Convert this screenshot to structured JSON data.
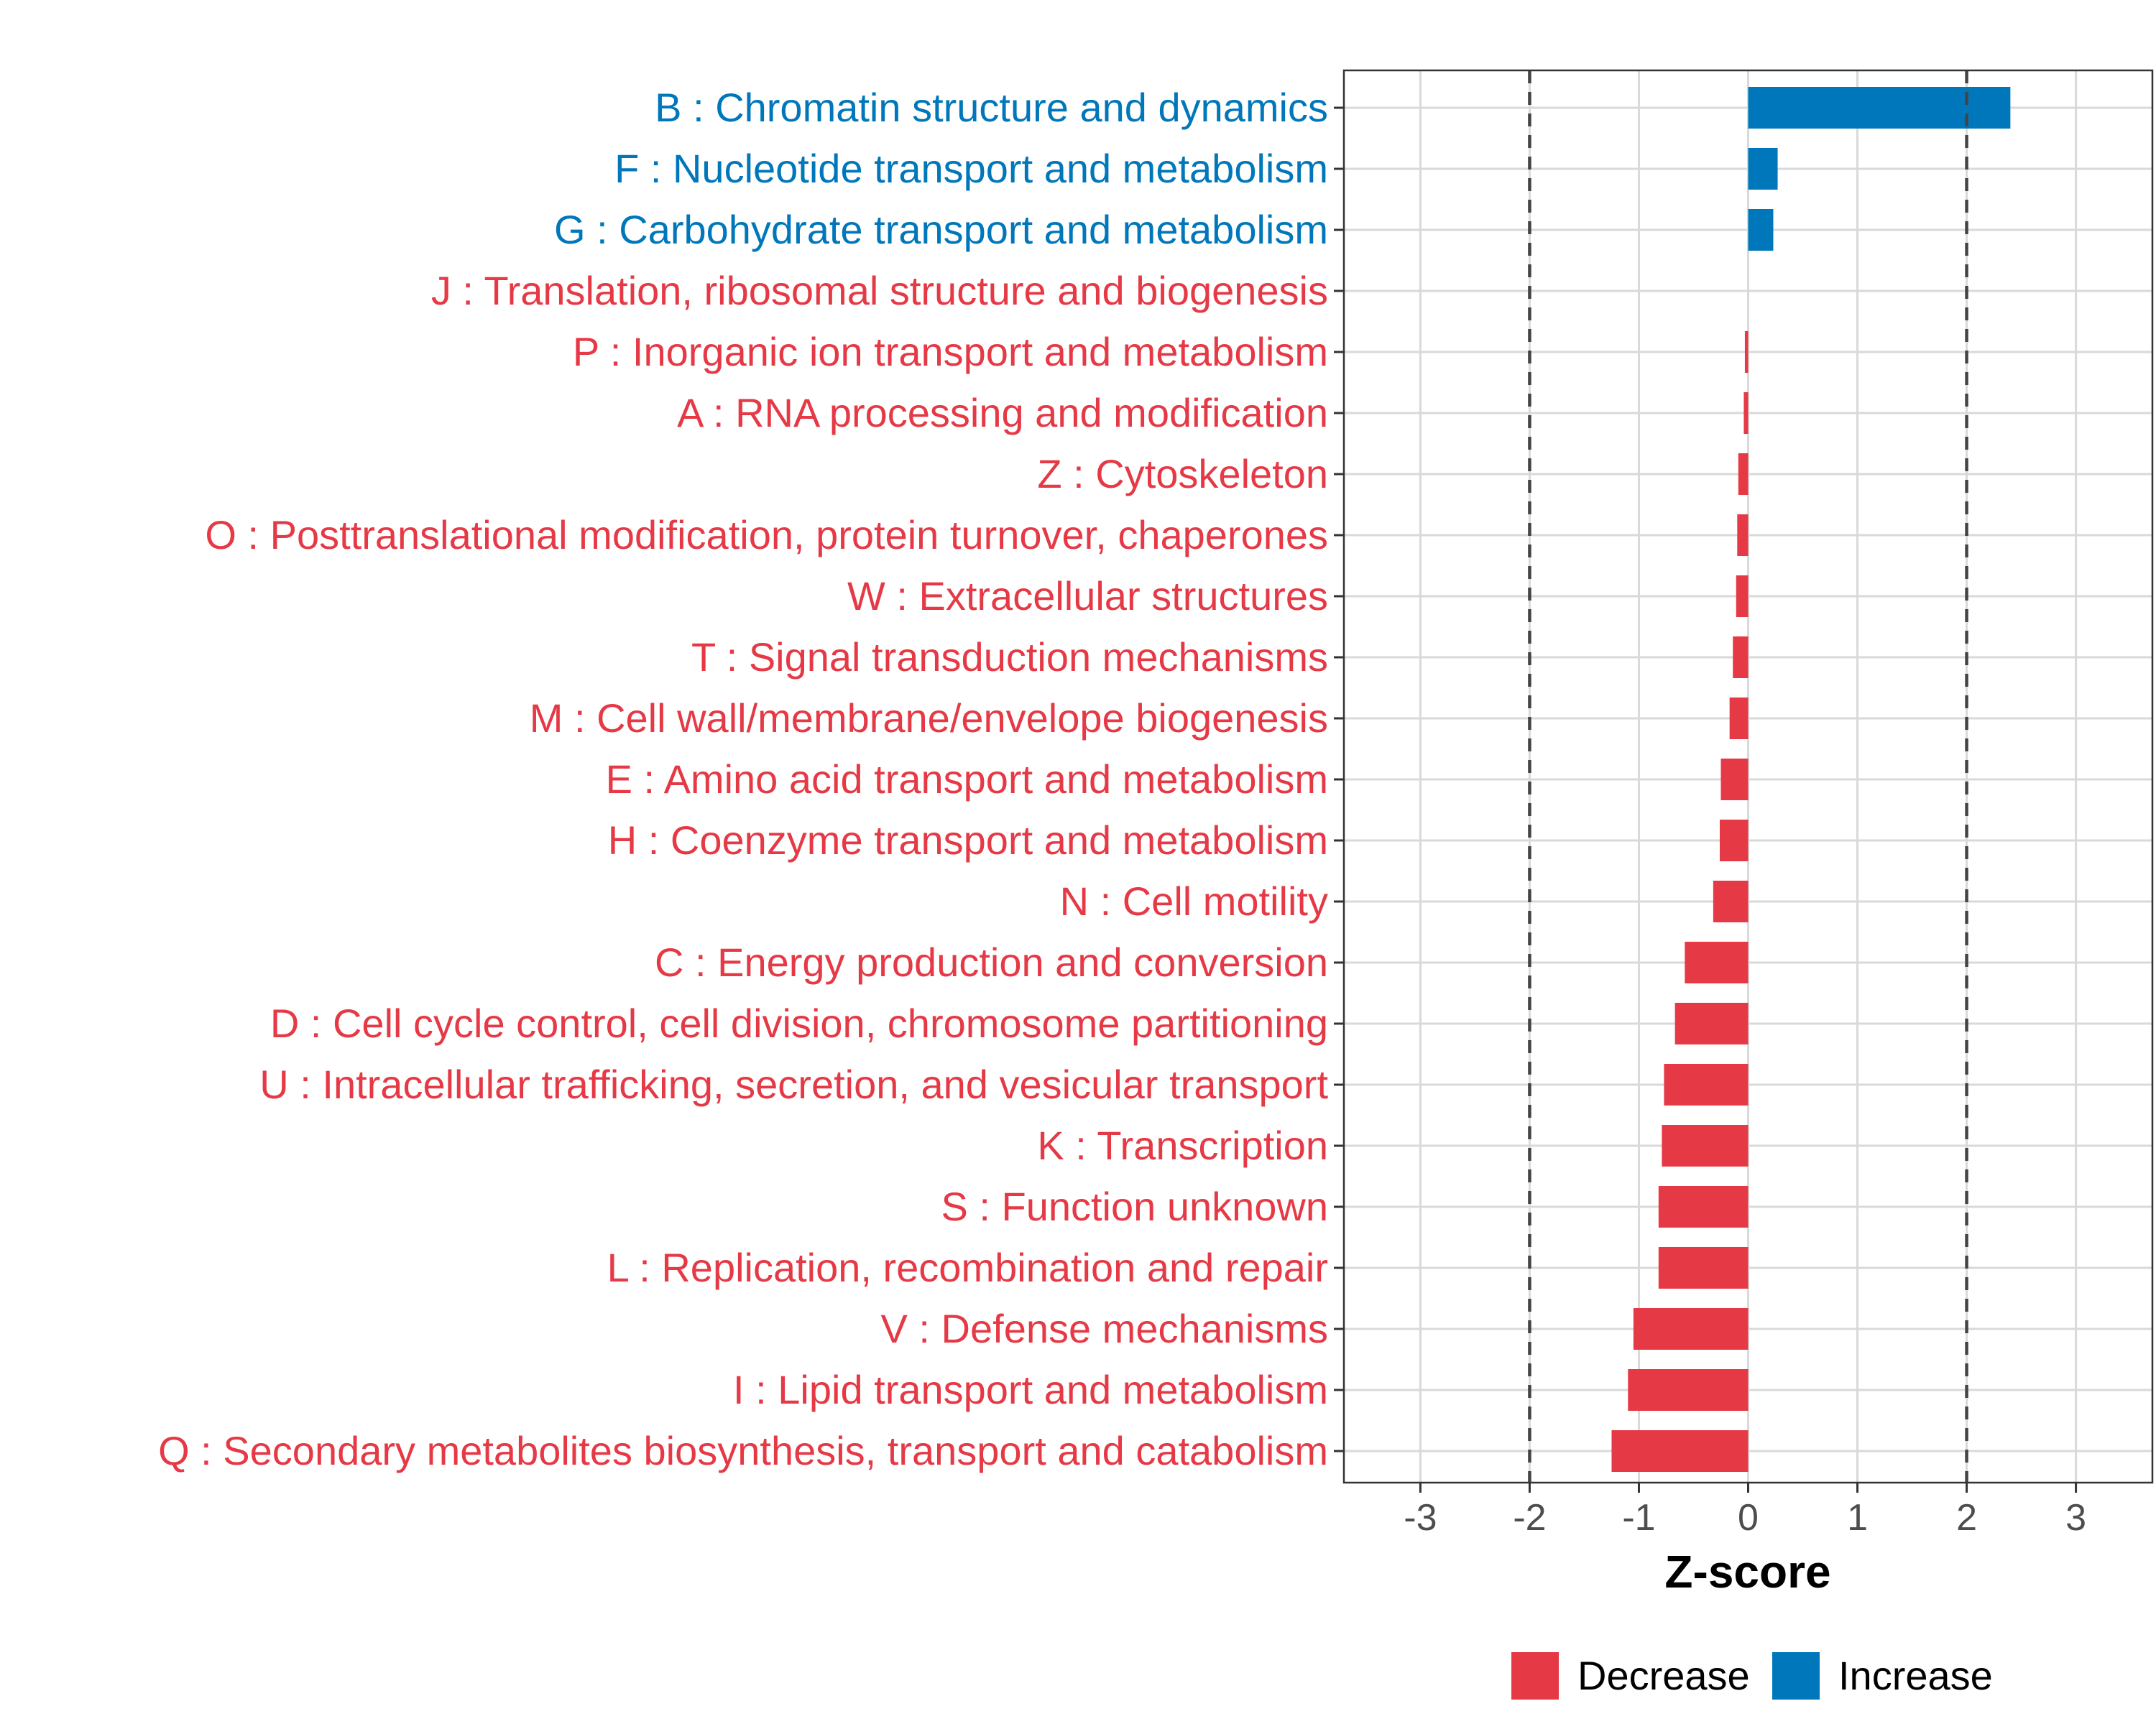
{
  "chart_data": {
    "type": "bar",
    "orientation": "horizontal",
    "xlabel": "Z-score",
    "ylabel": "",
    "xlim": [
      -3.7,
      3.7
    ],
    "xticks": [
      -3,
      -2,
      -1,
      0,
      1,
      2,
      3
    ],
    "tick_labels": [
      "-3",
      "-2",
      "-1",
      "0",
      "1",
      "2",
      "3"
    ],
    "reference_lines": [
      -2,
      2
    ],
    "grid": true,
    "legend_position": "bottom",
    "colors": {
      "Decrease": "#e63946",
      "Increase": "#0077bb"
    },
    "legend": [
      {
        "name": "Decrease",
        "color": "#e63946"
      },
      {
        "name": "Increase",
        "color": "#0077bb"
      }
    ],
    "categories": [
      "B : Chromatin structure and dynamics",
      "F : Nucleotide transport and metabolism",
      "G : Carbohydrate transport and metabolism",
      "J : Translation, ribosomal structure and biogenesis",
      "P : Inorganic ion transport and metabolism",
      "A : RNA processing and modification",
      "Z : Cytoskeleton",
      "O : Posttranslational modification, protein turnover, chaperones",
      "W : Extracellular structures",
      "T : Signal transduction mechanisms",
      "M : Cell wall/membrane/envelope biogenesis",
      "E : Amino acid transport and metabolism",
      "H : Coenzyme transport and metabolism",
      "N : Cell motility",
      "C : Energy production and conversion",
      "D : Cell cycle control, cell division, chromosome partitioning",
      "U : Intracellular trafficking, secretion, and vesicular transport",
      "K : Transcription",
      "S : Function unknown",
      "L : Replication, recombination and repair",
      "V : Defense mechanisms",
      "I : Lipid transport and metabolism",
      "Q : Secondary metabolites biosynthesis, transport and catabolism"
    ],
    "values": [
      2.4,
      0.27,
      0.23,
      0.0,
      -0.03,
      -0.04,
      -0.09,
      -0.1,
      -0.11,
      -0.14,
      -0.17,
      -0.25,
      -0.26,
      -0.32,
      -0.58,
      -0.67,
      -0.77,
      -0.79,
      -0.82,
      -0.82,
      -1.05,
      -1.1,
      -1.25
    ],
    "groups": [
      "Increase",
      "Increase",
      "Increase",
      "Decrease",
      "Decrease",
      "Decrease",
      "Decrease",
      "Decrease",
      "Decrease",
      "Decrease",
      "Decrease",
      "Decrease",
      "Decrease",
      "Decrease",
      "Decrease",
      "Decrease",
      "Decrease",
      "Decrease",
      "Decrease",
      "Decrease",
      "Decrease",
      "Decrease",
      "Decrease"
    ]
  }
}
